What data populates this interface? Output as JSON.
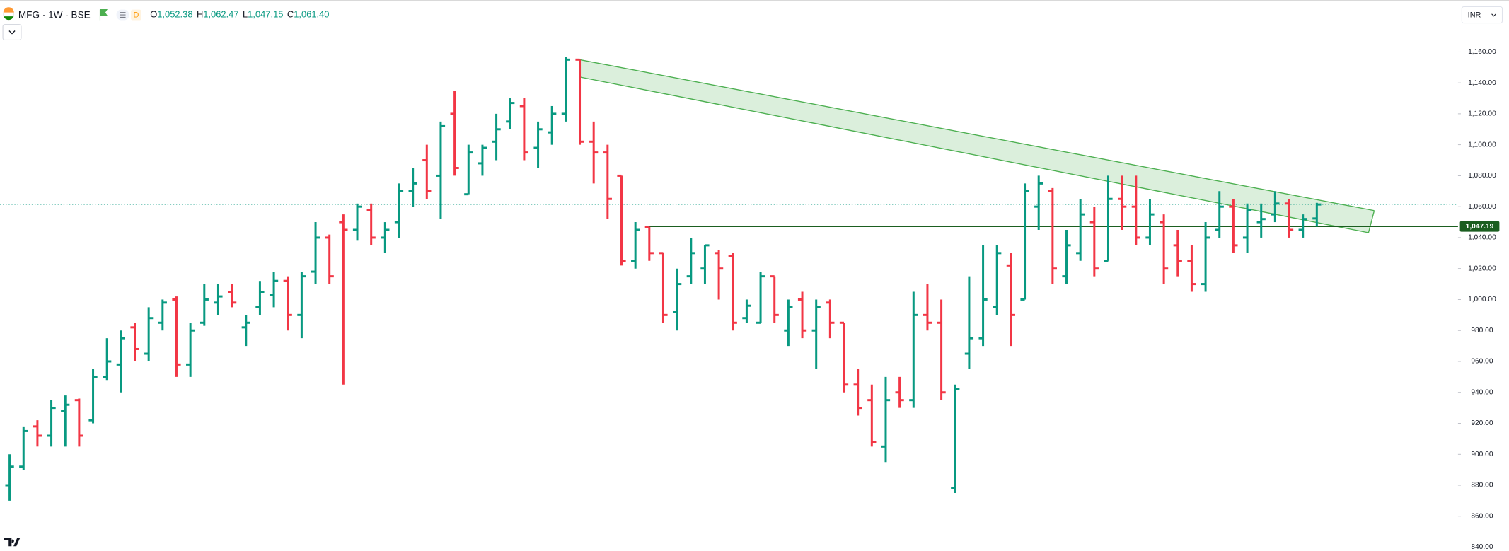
{
  "header": {
    "symbol": "MFG · 1W · BSE",
    "interval_badge": "D",
    "currency": "INR",
    "ohlc": [
      {
        "label": "O",
        "value": "1,052.38"
      },
      {
        "label": "H",
        "value": "1,062.47"
      },
      {
        "label": "L",
        "value": "1,047.15"
      },
      {
        "label": "C",
        "value": "1,061.40"
      }
    ]
  },
  "chart_data": {
    "type": "ohlc",
    "up_color": "#089981",
    "down_color": "#f23645",
    "open": [
      880,
      892,
      918,
      912,
      928,
      935,
      922,
      950,
      958,
      982,
      965,
      985,
      1000,
      958,
      985,
      998,
      1005,
      982,
      995,
      1003,
      1012,
      990,
      1018,
      1040,
      1050,
      1045,
      1058,
      1040,
      1050,
      1070,
      1090,
      1080,
      1120,
      1068,
      1088,
      1102,
      1115,
      1125,
      1098,
      1108,
      1120,
      1155,
      1102,
      1095,
      1080,
      1025,
      1047,
      1030,
      992,
      1015,
      1020,
      1030,
      1028,
      988,
      985,
      1015,
      980,
      1000,
      980,
      998,
      985,
      945,
      935,
      905,
      940,
      935,
      990,
      985,
      878,
      965,
      975,
      995,
      1022,
      1000,
      1060,
      1070,
      1015,
      1030,
      1050,
      1025,
      1065,
      1060,
      1040,
      1050,
      1035,
      1025,
      1010,
      1045,
      1060,
      1040,
      1050,
      1055,
      1062,
      1045,
      1052.38
    ],
    "high": [
      900,
      918,
      922,
      935,
      938,
      936,
      955,
      975,
      980,
      985,
      995,
      1000,
      1002,
      985,
      1010,
      1010,
      1010,
      990,
      1012,
      1018,
      1015,
      1018,
      1050,
      1042,
      1055,
      1062,
      1062,
      1050,
      1075,
      1085,
      1100,
      1115,
      1135,
      1100,
      1100,
      1120,
      1130,
      1130,
      1115,
      1125,
      1157,
      1155,
      1115,
      1100,
      1080,
      1050,
      1047,
      1030,
      1020,
      1040,
      1035,
      1032,
      1030,
      1000,
      1018,
      1015,
      1000,
      1005,
      1000,
      1000,
      985,
      955,
      945,
      950,
      950,
      1005,
      1010,
      1000,
      945,
      1015,
      1035,
      1035,
      1030,
      1075,
      1080,
      1072,
      1045,
      1065,
      1060,
      1080,
      1080,
      1080,
      1065,
      1055,
      1045,
      1035,
      1050,
      1070,
      1065,
      1062,
      1062,
      1070,
      1065,
      1055,
      1062.47
    ],
    "low": [
      870,
      890,
      905,
      905,
      905,
      905,
      920,
      948,
      940,
      960,
      960,
      980,
      950,
      950,
      983,
      990,
      995,
      970,
      990,
      995,
      980,
      975,
      1010,
      1010,
      945,
      1038,
      1035,
      1030,
      1040,
      1060,
      1065,
      1052,
      1080,
      1068,
      1080,
      1090,
      1110,
      1090,
      1085,
      1100,
      1115,
      1100,
      1075,
      1052,
      1022,
      1020,
      1025,
      985,
      980,
      1010,
      1010,
      1000,
      980,
      985,
      985,
      985,
      970,
      975,
      955,
      975,
      940,
      925,
      905,
      895,
      930,
      930,
      980,
      935,
      875,
      955,
      970,
      990,
      970,
      1000,
      1045,
      1010,
      1010,
      1025,
      1015,
      1025,
      1045,
      1035,
      1035,
      1010,
      1015,
      1005,
      1005,
      1040,
      1030,
      1030,
      1040,
      1050,
      1040,
      1040,
      1047.15
    ],
    "close": [
      892,
      915,
      912,
      930,
      932,
      912,
      950,
      960,
      975,
      968,
      988,
      998,
      958,
      980,
      1000,
      1002,
      998,
      985,
      1005,
      1012,
      990,
      1015,
      1040,
      1015,
      1045,
      1060,
      1040,
      1045,
      1070,
      1075,
      1070,
      1112,
      1085,
      1095,
      1098,
      1110,
      1127,
      1095,
      1110,
      1120,
      1155,
      1102,
      1095,
      1065,
      1025,
      1045,
      1030,
      990,
      1010,
      1030,
      1035,
      1020,
      985,
      996,
      1015,
      990,
      995,
      980,
      995,
      985,
      945,
      930,
      908,
      935,
      935,
      990,
      985,
      940,
      942,
      975,
      1000,
      1030,
      990,
      1070,
      1075,
      1020,
      1035,
      1055,
      1020,
      1065,
      1060,
      1040,
      1055,
      1020,
      1025,
      1010,
      1040,
      1060,
      1035,
      1058,
      1052,
      1062,
      1045,
      1052,
      1061.4
    ],
    "ylim": [
      837.5,
      1190
    ],
    "yticks": [
      {
        "value": 840,
        "label": "840.00"
      },
      {
        "value": 860,
        "label": "860.00"
      },
      {
        "value": 880,
        "label": "880.00"
      },
      {
        "value": 900,
        "label": "900.00"
      },
      {
        "value": 920,
        "label": "920.00"
      },
      {
        "value": 940,
        "label": "940.00"
      },
      {
        "value": 960,
        "label": "960.00"
      },
      {
        "value": 980,
        "label": "980.00"
      },
      {
        "value": 1000,
        "label": "1,000.00"
      },
      {
        "value": 1020,
        "label": "1,020.00"
      },
      {
        "value": 1040,
        "label": "1,040.00"
      },
      {
        "value": 1060,
        "label": "1,060.00"
      },
      {
        "value": 1080,
        "label": "1,080.00"
      },
      {
        "value": 1100,
        "label": "1,100.00"
      },
      {
        "value": 1120,
        "label": "1,120.00"
      },
      {
        "value": 1140,
        "label": "1,140.00"
      },
      {
        "value": 1160,
        "label": "1,160.00"
      }
    ],
    "hline": {
      "value": 1047.19,
      "label": "1,047.19",
      "color": "#1b5e20"
    }
  }
}
